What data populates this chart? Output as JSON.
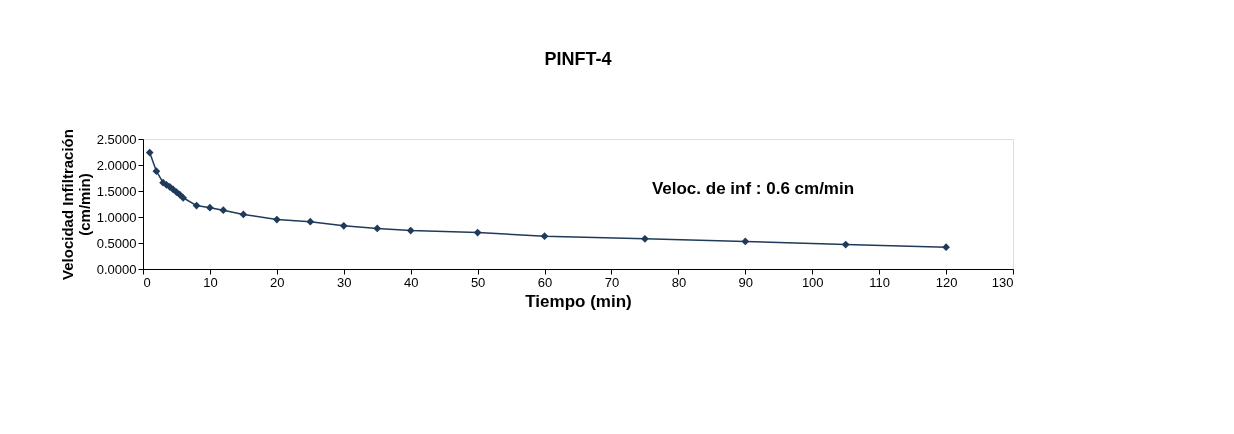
{
  "chart_data": {
    "type": "line",
    "title": "PINFT-4",
    "xlabel": "Tiempo (min)",
    "ylabel": "Velocidad Infiltración (cm/min)",
    "x": [
      1,
      2,
      3,
      3.5,
      4,
      4.5,
      5,
      5.5,
      6,
      8,
      10,
      12,
      15,
      20,
      25,
      30,
      35,
      40,
      50,
      60,
      75,
      90,
      105,
      120
    ],
    "series": [
      {
        "color": "#1f3a5a",
        "values": [
          2.24,
          1.88,
          1.66,
          1.62,
          1.58,
          1.53,
          1.48,
          1.43,
          1.37,
          1.22,
          1.18,
          1.13,
          1.05,
          0.95,
          0.91,
          0.83,
          0.78,
          0.74,
          0.7,
          0.63,
          0.58,
          0.53,
          0.47,
          0.42
        ]
      }
    ],
    "xlim": [
      0,
      130
    ],
    "xticks": [
      0,
      10,
      20,
      30,
      40,
      50,
      60,
      70,
      80,
      90,
      100,
      110,
      120,
      130
    ],
    "ylim": [
      0,
      2.5
    ],
    "yticks": [
      {
        "value": 0,
        "label": "0.0000"
      },
      {
        "value": 0.5,
        "label": "0.5000"
      },
      {
        "value": 1,
        "label": "1.0000"
      },
      {
        "value": 1.5,
        "label": "1.5000"
      },
      {
        "value": 2,
        "label": "2.0000"
      },
      {
        "value": 2.5,
        "label": "2.5000"
      }
    ],
    "annotations": [
      "Veloc. de inf : 0.6 cm/min"
    ],
    "marker": "diamond",
    "line_style": "solid",
    "grid": false
  }
}
